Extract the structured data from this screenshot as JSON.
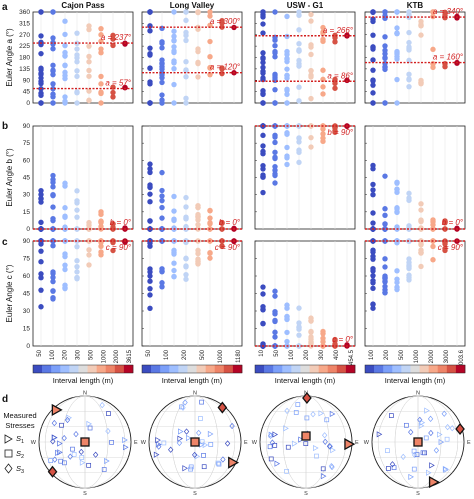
{
  "panel_labels": [
    "a",
    "b",
    "c",
    "d"
  ],
  "sites": [
    {
      "name": "Cajon Pass",
      "xticks": [
        "50",
        "100",
        "200",
        "300",
        "500",
        "1000",
        "2000",
        "3615"
      ]
    },
    {
      "name": "Long Valley",
      "xticks": [
        "50",
        "100",
        "200",
        "500",
        "1000",
        "1180"
      ]
    },
    {
      "name": "USW - G1",
      "xticks": [
        "10",
        "50",
        "100",
        "200",
        "300",
        "400",
        "454.5"
      ]
    },
    {
      "name": "KTB",
      "xticks": [
        "100",
        "200",
        "500",
        "1000",
        "2000",
        "3000",
        "4003.6"
      ]
    }
  ],
  "rows": [
    {
      "key": "a",
      "ylabel": "Euler Angle a (°)",
      "yticks": [
        "0",
        "45",
        "90",
        "135",
        "180",
        "225",
        "270",
        "315",
        "360"
      ],
      "ymax": 360
    },
    {
      "key": "b",
      "ylabel": "Euler Angle b (°)",
      "yticks": [
        "0",
        "15",
        "30",
        "45",
        "60",
        "75",
        "90"
      ],
      "ymax": 90
    },
    {
      "key": "c",
      "ylabel": "Euler Angle c (°)",
      "yticks": [
        "0",
        "15",
        "30",
        "45",
        "60",
        "75",
        "90"
      ],
      "ymax": 90
    }
  ],
  "colorbar_label": "Interval length (m)",
  "colors": {
    "reference_line": "#d21f1f",
    "scale": [
      "#3b4cc0",
      "#5a78e4",
      "#7b9ff9",
      "#9ebeff",
      "#c0d4f5",
      "#dddddd",
      "#f2cbb7",
      "#f7a889",
      "#ee8468",
      "#d65244",
      "#b40426"
    ]
  },
  "stereonet": {
    "legend_title": "Measured Stresses",
    "legend_items": [
      {
        "symbol": "triangle",
        "label": "S1"
      },
      {
        "symbol": "square",
        "label": "S2"
      },
      {
        "symbol": "diamond",
        "label": "S3"
      }
    ],
    "compass": [
      "N",
      "E",
      "S",
      "W"
    ]
  },
  "chart_data": [
    {
      "type": "scatter",
      "title": "Cajon Pass",
      "panel": "a",
      "xlabel": "Interval length (m)",
      "ylabel": "Euler Angle a (°)",
      "ylim": [
        0,
        360
      ],
      "reference_lines": [
        {
          "label": "a = 237°",
          "value": 237
        },
        {
          "label": "a = 57°",
          "value": 57
        }
      ]
    },
    {
      "type": "scatter",
      "title": "Long Valley",
      "panel": "a",
      "ylim": [
        0,
        360
      ],
      "reference_lines": [
        {
          "label": "a = 300°",
          "value": 300
        },
        {
          "label": "a = 120°",
          "value": 120
        }
      ]
    },
    {
      "type": "scatter",
      "title": "USW - G1",
      "panel": "a",
      "ylim": [
        0,
        360
      ],
      "reference_lines": [
        {
          "label": "a = 266°",
          "value": 266
        },
        {
          "label": "a = 86°",
          "value": 86
        }
      ]
    },
    {
      "type": "scatter",
      "title": "KTB",
      "panel": "a",
      "ylim": [
        0,
        360
      ],
      "reference_lines": [
        {
          "label": "a = 340°",
          "value": 340
        },
        {
          "label": "a = 160°",
          "value": 160
        }
      ]
    },
    {
      "type": "scatter",
      "title": "Cajon Pass",
      "panel": "b",
      "ylabel": "Euler Angle b (°)",
      "ylim": [
        0,
        90
      ],
      "reference_lines": [
        {
          "label": "b = 0°",
          "value": 0
        }
      ]
    },
    {
      "type": "scatter",
      "title": "Long Valley",
      "panel": "b",
      "ylim": [
        0,
        90
      ],
      "reference_lines": [
        {
          "label": "b = 0°",
          "value": 0
        }
      ]
    },
    {
      "type": "scatter",
      "title": "USW - G1",
      "panel": "b",
      "ylim": [
        0,
        90
      ],
      "reference_lines": [
        {
          "label": "b = 90°",
          "value": 90
        }
      ]
    },
    {
      "type": "scatter",
      "title": "KTB",
      "panel": "b",
      "ylim": [
        0,
        90
      ],
      "reference_lines": [
        {
          "label": "b = 0°",
          "value": 0
        }
      ]
    },
    {
      "type": "scatter",
      "title": "Cajon Pass",
      "panel": "c",
      "ylabel": "Euler Angle c (°)",
      "ylim": [
        0,
        90
      ],
      "reference_lines": [
        {
          "label": "c = 90°",
          "value": 90
        }
      ]
    },
    {
      "type": "scatter",
      "title": "Long Valley",
      "panel": "c",
      "ylim": [
        0,
        90
      ],
      "reference_lines": [
        {
          "label": "c = 90°",
          "value": 90
        }
      ]
    },
    {
      "type": "scatter",
      "title": "USW - G1",
      "panel": "c",
      "ylim": [
        0,
        90
      ],
      "reference_lines": [
        {
          "label": "c = 0°",
          "value": 0
        }
      ]
    },
    {
      "type": "scatter",
      "title": "KTB",
      "panel": "c",
      "ylim": [
        0,
        90
      ],
      "reference_lines": [
        {
          "label": "c = 90°",
          "value": 90
        }
      ]
    }
  ]
}
